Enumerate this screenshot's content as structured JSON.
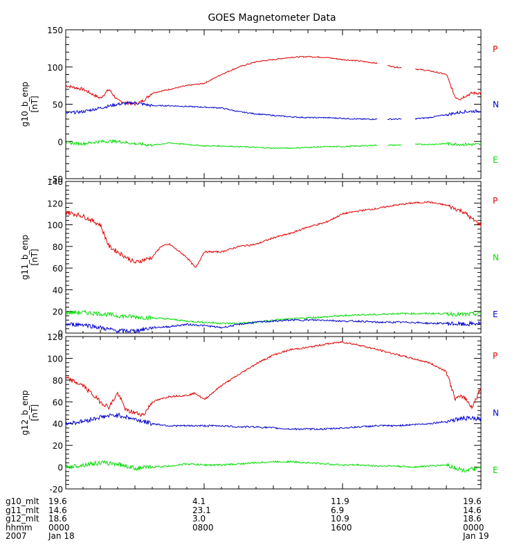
{
  "chart_data": {
    "type": "line",
    "title": "GOES Magnetometer Data",
    "x_range_hours": [
      0,
      24
    ],
    "panels": [
      {
        "ylabel": "g10_b_enp",
        "units": "[nT]",
        "ylim": [
          -50,
          150
        ],
        "ticks": [
          -50,
          0,
          50,
          100,
          150
        ],
        "legend": [
          "P",
          "N",
          "E"
        ],
        "series": [
          {
            "name": "P",
            "color": "#dd0000",
            "x": [
              0,
              1,
              2,
              2.5,
              3,
              3.5,
              4,
              4.5,
              5,
              6,
              7,
              8,
              9,
              10,
              11,
              12,
              13,
              14,
              15,
              16,
              17,
              18,
              19,
              20,
              21,
              22,
              22.5,
              22.8,
              23,
              23.5,
              24
            ],
            "y": [
              75,
              70,
              58,
              70,
              55,
              52,
              50,
              55,
              65,
              70,
              75,
              78,
              90,
              100,
              107,
              110,
              113,
              114,
              113,
              110,
              108,
              105,
              100,
              98,
              95,
              90,
              60,
              57,
              60,
              65,
              65
            ],
            "gaps": [
              [
                18.0,
                18.6
              ],
              [
                19.4,
                20.2
              ]
            ]
          },
          {
            "name": "N",
            "color": "#0000cc",
            "x": [
              0,
              1,
              2,
              3,
              4,
              5,
              6,
              7,
              8,
              9,
              10,
              11,
              12,
              13,
              14,
              15,
              16,
              17,
              18,
              19,
              20,
              21,
              22,
              23,
              24
            ],
            "y": [
              38,
              40,
              45,
              50,
              52,
              48,
              48,
              47,
              46,
              45,
              40,
              37,
              35,
              33,
              32,
              32,
              31,
              30,
              30,
              30,
              30,
              32,
              36,
              40,
              41
            ],
            "gaps": [
              [
                18.0,
                18.6
              ],
              [
                19.4,
                20.2
              ]
            ]
          },
          {
            "name": "E",
            "color": "#00dd00",
            "x": [
              0,
              1,
              2,
              3,
              4,
              5,
              6,
              7,
              8,
              9,
              10,
              11,
              12,
              13,
              14,
              15,
              16,
              17,
              18,
              19,
              20,
              21,
              22,
              23,
              24
            ],
            "y": [
              -2,
              -3,
              0,
              0,
              -3,
              -5,
              -2,
              -4,
              -6,
              -6,
              -7,
              -8,
              -9,
              -9,
              -8,
              -7,
              -7,
              -6,
              -5,
              -5,
              -4,
              -4,
              -3,
              -4,
              -4
            ],
            "gaps": [
              [
                18.0,
                18.6
              ],
              [
                19.4,
                20.2
              ]
            ]
          }
        ]
      },
      {
        "ylabel": "g11_b_enp",
        "units": "[nT]",
        "ylim": [
          0,
          140
        ],
        "ticks": [
          0,
          20,
          40,
          60,
          80,
          100,
          120,
          140
        ],
        "legend": [
          "P",
          "N",
          "E"
        ],
        "series": [
          {
            "name": "P",
            "color": "#dd0000",
            "x": [
              0,
              1,
              2,
              2.5,
              3,
              4,
              5,
              5.5,
              6,
              7,
              7.5,
              8,
              9,
              10,
              11,
              12,
              13,
              14,
              15,
              16,
              17,
              18,
              19,
              20,
              21,
              22,
              23,
              23.5,
              24
            ],
            "y": [
              112,
              108,
              100,
              80,
              75,
              65,
              70,
              80,
              82,
              70,
              60,
              75,
              75,
              80,
              82,
              88,
              92,
              98,
              102,
              110,
              113,
              115,
              118,
              120,
              121,
              118,
              112,
              105,
              100
            ]
          },
          {
            "name": "N",
            "color": "#00dd00",
            "x": [
              0,
              1,
              2,
              3,
              4,
              5,
              6,
              7,
              8,
              9,
              10,
              11,
              12,
              13,
              14,
              15,
              16,
              17,
              18,
              19,
              20,
              21,
              22,
              23,
              24
            ],
            "y": [
              19,
              19,
              18,
              16,
              15,
              14,
              13,
              11,
              10,
              9,
              9,
              10,
              12,
              13,
              14,
              15,
              16,
              17,
              17,
              18,
              18,
              18,
              18,
              17,
              18
            ]
          },
          {
            "name": "E",
            "color": "#0000cc",
            "x": [
              0,
              1,
              2,
              3,
              4,
              5,
              6,
              7,
              8,
              9,
              10,
              11,
              12,
              13,
              14,
              15,
              16,
              17,
              18,
              19,
              20,
              21,
              22,
              23,
              24
            ],
            "y": [
              8,
              8,
              5,
              2,
              2,
              5,
              6,
              8,
              7,
              5,
              8,
              10,
              11,
              12,
              12,
              12,
              11,
              11,
              10,
              10,
              10,
              9,
              9,
              8,
              9
            ]
          }
        ]
      },
      {
        "ylabel": "g12_b_enp",
        "units": "[nT]",
        "ylim": [
          -20,
          120
        ],
        "ticks": [
          -20,
          0,
          20,
          40,
          60,
          80,
          100,
          120
        ],
        "legend": [
          "P",
          "N",
          "E"
        ],
        "series": [
          {
            "name": "P",
            "color": "#dd0000",
            "x": [
              0,
              1,
              2,
              2.5,
              3,
              3.5,
              4,
              4.5,
              5,
              6,
              7,
              7.5,
              8,
              9,
              10,
              11,
              12,
              13,
              14,
              15,
              16,
              17,
              18,
              19,
              20,
              21,
              22,
              22.5,
              23,
              23.5,
              24
            ],
            "y": [
              82,
              75,
              60,
              55,
              68,
              52,
              50,
              48,
              60,
              65,
              66,
              68,
              62,
              75,
              85,
              95,
              103,
              108,
              110,
              113,
              115,
              112,
              108,
              104,
              100,
              96,
              88,
              63,
              65,
              55,
              73
            ]
          },
          {
            "name": "N",
            "color": "#0000cc",
            "x": [
              0,
              1,
              2,
              3,
              4,
              5,
              6,
              7,
              8,
              9,
              10,
              11,
              12,
              13,
              14,
              15,
              16,
              17,
              18,
              19,
              20,
              21,
              22,
              23,
              24
            ],
            "y": [
              40,
              42,
              46,
              48,
              44,
              40,
              38,
              38,
              38,
              38,
              37,
              37,
              36,
              35,
              35,
              35,
              36,
              37,
              38,
              38,
              39,
              40,
              42,
              45,
              44
            ]
          },
          {
            "name": "E",
            "color": "#00dd00",
            "x": [
              0,
              1,
              2,
              3,
              4,
              5,
              6,
              7,
              8,
              9,
              10,
              11,
              12,
              13,
              14,
              15,
              16,
              17,
              18,
              19,
              20,
              21,
              22,
              23,
              24
            ],
            "y": [
              0,
              2,
              4,
              3,
              -1,
              0,
              1,
              3,
              2,
              2,
              3,
              4,
              5,
              5,
              4,
              3,
              2,
              2,
              1,
              1,
              0,
              1,
              2,
              -3,
              -1
            ]
          }
        ]
      }
    ],
    "x_annotations": {
      "row_labels": [
        "g10_mlt",
        "g11_mlt",
        "g12_mlt",
        "hhmm",
        "2007"
      ],
      "columns": [
        {
          "hours": 0,
          "values": [
            "19.6",
            "14.6",
            "18.6",
            "0000",
            "Jan 18"
          ]
        },
        {
          "hours": 8,
          "values": [
            "4.1",
            "23.1",
            "3.0",
            "0800",
            ""
          ]
        },
        {
          "hours": 16,
          "values": [
            "11.9",
            "6.9",
            "10.9",
            "1600",
            ""
          ]
        },
        {
          "hours": 24,
          "values": [
            "19.6",
            "14.6",
            "18.6",
            "0000",
            "Jan 19"
          ]
        }
      ]
    }
  }
}
